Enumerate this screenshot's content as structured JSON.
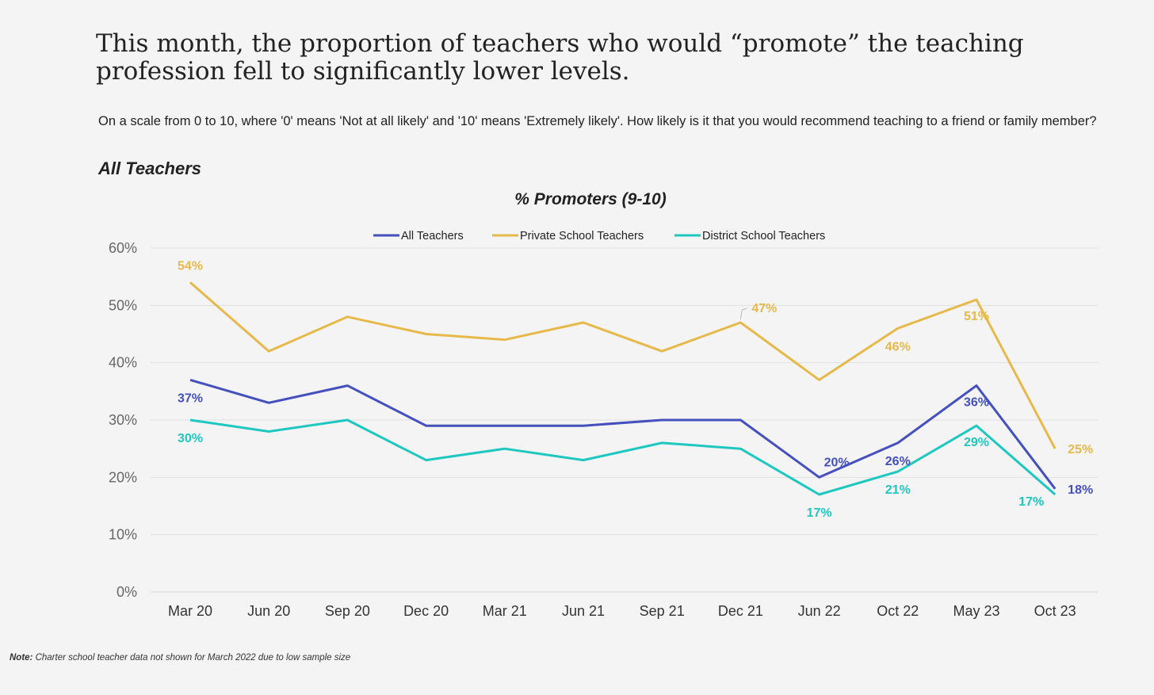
{
  "headline": "This month, the proportion of teachers who would “promote” the teaching profession fell to significantly lower levels.",
  "question": "On a scale from 0 to 10, where '0' means 'Not at all likely' and '10' means 'Extremely likely'. How likely is it that you would recommend teaching to a friend or family member?",
  "subhead": "All Teachers",
  "note": {
    "label": "Note:",
    "text": " Charter school teacher data not shown for March 2022 due to low sample size"
  },
  "chart_data": {
    "type": "line",
    "title": "% Promoters (9-10)",
    "categories": [
      "Mar 20",
      "Jun 20",
      "Sep 20",
      "Dec 20",
      "Mar 21",
      "Jun 21",
      "Sep 21",
      "Dec 21",
      "Jun 22",
      "Oct 22",
      "May 23",
      "Oct 23"
    ],
    "y_ticks": [
      "0%",
      "10%",
      "20%",
      "30%",
      "40%",
      "50%",
      "60%"
    ],
    "ylim": [
      0,
      60
    ],
    "grid": true,
    "legend_position": "top-center",
    "series": [
      {
        "name": "All Teachers",
        "color": "#4450be",
        "values": [
          37,
          33,
          36,
          29,
          29,
          29,
          30,
          30,
          20,
          26,
          36,
          18
        ],
        "labels": [
          {
            "index": 0,
            "text": "37%"
          },
          {
            "index": 8,
            "text": "20%"
          },
          {
            "index": 9,
            "text": "26%"
          },
          {
            "index": 10,
            "text": "36%"
          },
          {
            "index": 11,
            "text": "18%"
          }
        ]
      },
      {
        "name": "Private School Teachers",
        "color": "#e6b94a",
        "values": [
          54,
          42,
          48,
          45,
          44,
          47,
          42,
          47,
          37,
          46,
          51,
          25
        ],
        "labels": [
          {
            "index": 0,
            "text": "54%"
          },
          {
            "index": 7,
            "text": "47%"
          },
          {
            "index": 9,
            "text": "46%"
          },
          {
            "index": 10,
            "text": "51%"
          },
          {
            "index": 11,
            "text": "25%"
          }
        ]
      },
      {
        "name": "District School Teachers",
        "color": "#1ec8c0",
        "values": [
          30,
          28,
          30,
          23,
          25,
          23,
          26,
          25,
          17,
          21,
          29,
          17
        ],
        "labels": [
          {
            "index": 0,
            "text": "30%"
          },
          {
            "index": 8,
            "text": "17%"
          },
          {
            "index": 9,
            "text": "21%"
          },
          {
            "index": 10,
            "text": "29%"
          },
          {
            "index": 11,
            "text": "17%"
          }
        ]
      }
    ]
  }
}
